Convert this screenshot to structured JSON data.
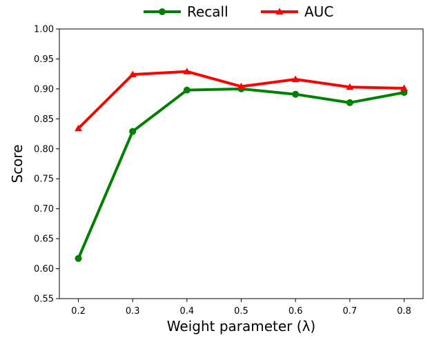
{
  "chart_data": {
    "type": "line",
    "title": "",
    "xlabel": "Weight parameter (λ)",
    "ylabel": "Score",
    "x": [
      0.2,
      0.3,
      0.4,
      0.5,
      0.6,
      0.7,
      0.8
    ],
    "x_tick_labels": [
      "0.2",
      "0.3",
      "0.4",
      "0.5",
      "0.6",
      "0.7",
      "0.8"
    ],
    "xlim": [
      0.165,
      0.835
    ],
    "ylim": [
      0.55,
      1.0
    ],
    "y_ticks": [
      0.55,
      0.6,
      0.65,
      0.7,
      0.75,
      0.8,
      0.85,
      0.9,
      0.95,
      1.0
    ],
    "y_tick_labels": [
      "0.55",
      "0.60",
      "0.65",
      "0.70",
      "0.75",
      "0.80",
      "0.85",
      "0.90",
      "0.95",
      "1.00"
    ],
    "grid": false,
    "legend_position": "top-center, above plot",
    "series": [
      {
        "name": "Recall",
        "color": "#008000",
        "marker": "circle",
        "values": [
          0.617,
          0.829,
          0.898,
          0.9,
          0.891,
          0.877,
          0.894
        ]
      },
      {
        "name": "AUC",
        "color": "#ff0000",
        "marker": "triangle",
        "values": [
          0.834,
          0.924,
          0.929,
          0.904,
          0.916,
          0.903,
          0.901
        ]
      }
    ]
  }
}
